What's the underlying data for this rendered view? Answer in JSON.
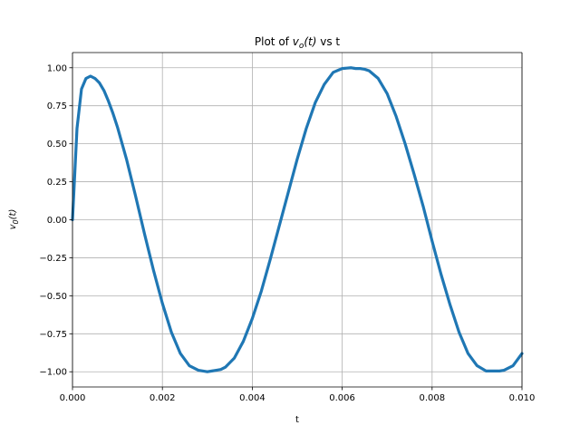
{
  "chart_data": {
    "type": "line",
    "title": {
      "prefix": "Plot of ",
      "var": "v",
      "sub": "o",
      "arg": "(t)",
      "suffix": " vs t"
    },
    "xlabel": "t",
    "ylabel": {
      "var": "v",
      "sub": "0",
      "arg": "(t)"
    },
    "xlim": [
      0.0,
      0.01
    ],
    "ylim": [
      -1.1,
      1.1
    ],
    "xticks": [
      0.0,
      0.002,
      0.004,
      0.006,
      0.008,
      0.01
    ],
    "xtick_labels": [
      "0.000",
      "0.002",
      "0.004",
      "0.006",
      "0.008",
      "0.010"
    ],
    "yticks": [
      -1.0,
      -0.75,
      -0.5,
      -0.25,
      0.0,
      0.25,
      0.5,
      0.75,
      1.0
    ],
    "ytick_labels": [
      "−1.00",
      "−0.75",
      "−0.50",
      "−0.25",
      "0.00",
      "0.25",
      "0.50",
      "0.75",
      "1.00"
    ],
    "grid": true,
    "series": [
      {
        "color": "#1f77b4",
        "x": [
          0.0,
          0.0001,
          0.0002,
          0.0003,
          0.0004,
          0.0005,
          0.0006,
          0.0007,
          0.0008,
          0.0009,
          0.001,
          0.0012,
          0.0014,
          0.0016,
          0.0018,
          0.002,
          0.0022,
          0.0024,
          0.0026,
          0.0028,
          0.003,
          0.0031,
          0.0032,
          0.0033,
          0.0034,
          0.0036,
          0.0038,
          0.004,
          0.0042,
          0.0044,
          0.0046,
          0.0048,
          0.005,
          0.0052,
          0.0054,
          0.0056,
          0.0058,
          0.006,
          0.0062,
          0.0063,
          0.0064,
          0.0065,
          0.0066,
          0.0068,
          0.007,
          0.0072,
          0.0074,
          0.0076,
          0.0078,
          0.008,
          0.0082,
          0.0084,
          0.0086,
          0.0088,
          0.009,
          0.0092,
          0.0094,
          0.0095,
          0.0096,
          0.0098,
          0.01
        ],
        "y": [
          0.0,
          0.6,
          0.86,
          0.93,
          0.945,
          0.93,
          0.9,
          0.85,
          0.78,
          0.7,
          0.61,
          0.4,
          0.16,
          -0.09,
          -0.33,
          -0.55,
          -0.74,
          -0.88,
          -0.96,
          -0.99,
          -1.0,
          -0.995,
          -0.99,
          -0.985,
          -0.97,
          -0.91,
          -0.8,
          -0.65,
          -0.47,
          -0.26,
          -0.04,
          0.18,
          0.4,
          0.6,
          0.77,
          0.89,
          0.97,
          0.995,
          1.0,
          0.995,
          0.995,
          0.99,
          0.98,
          0.93,
          0.83,
          0.68,
          0.5,
          0.3,
          0.09,
          -0.14,
          -0.36,
          -0.56,
          -0.74,
          -0.88,
          -0.96,
          -0.995,
          -0.995,
          -0.995,
          -0.99,
          -0.96,
          -0.88
        ]
      }
    ]
  }
}
